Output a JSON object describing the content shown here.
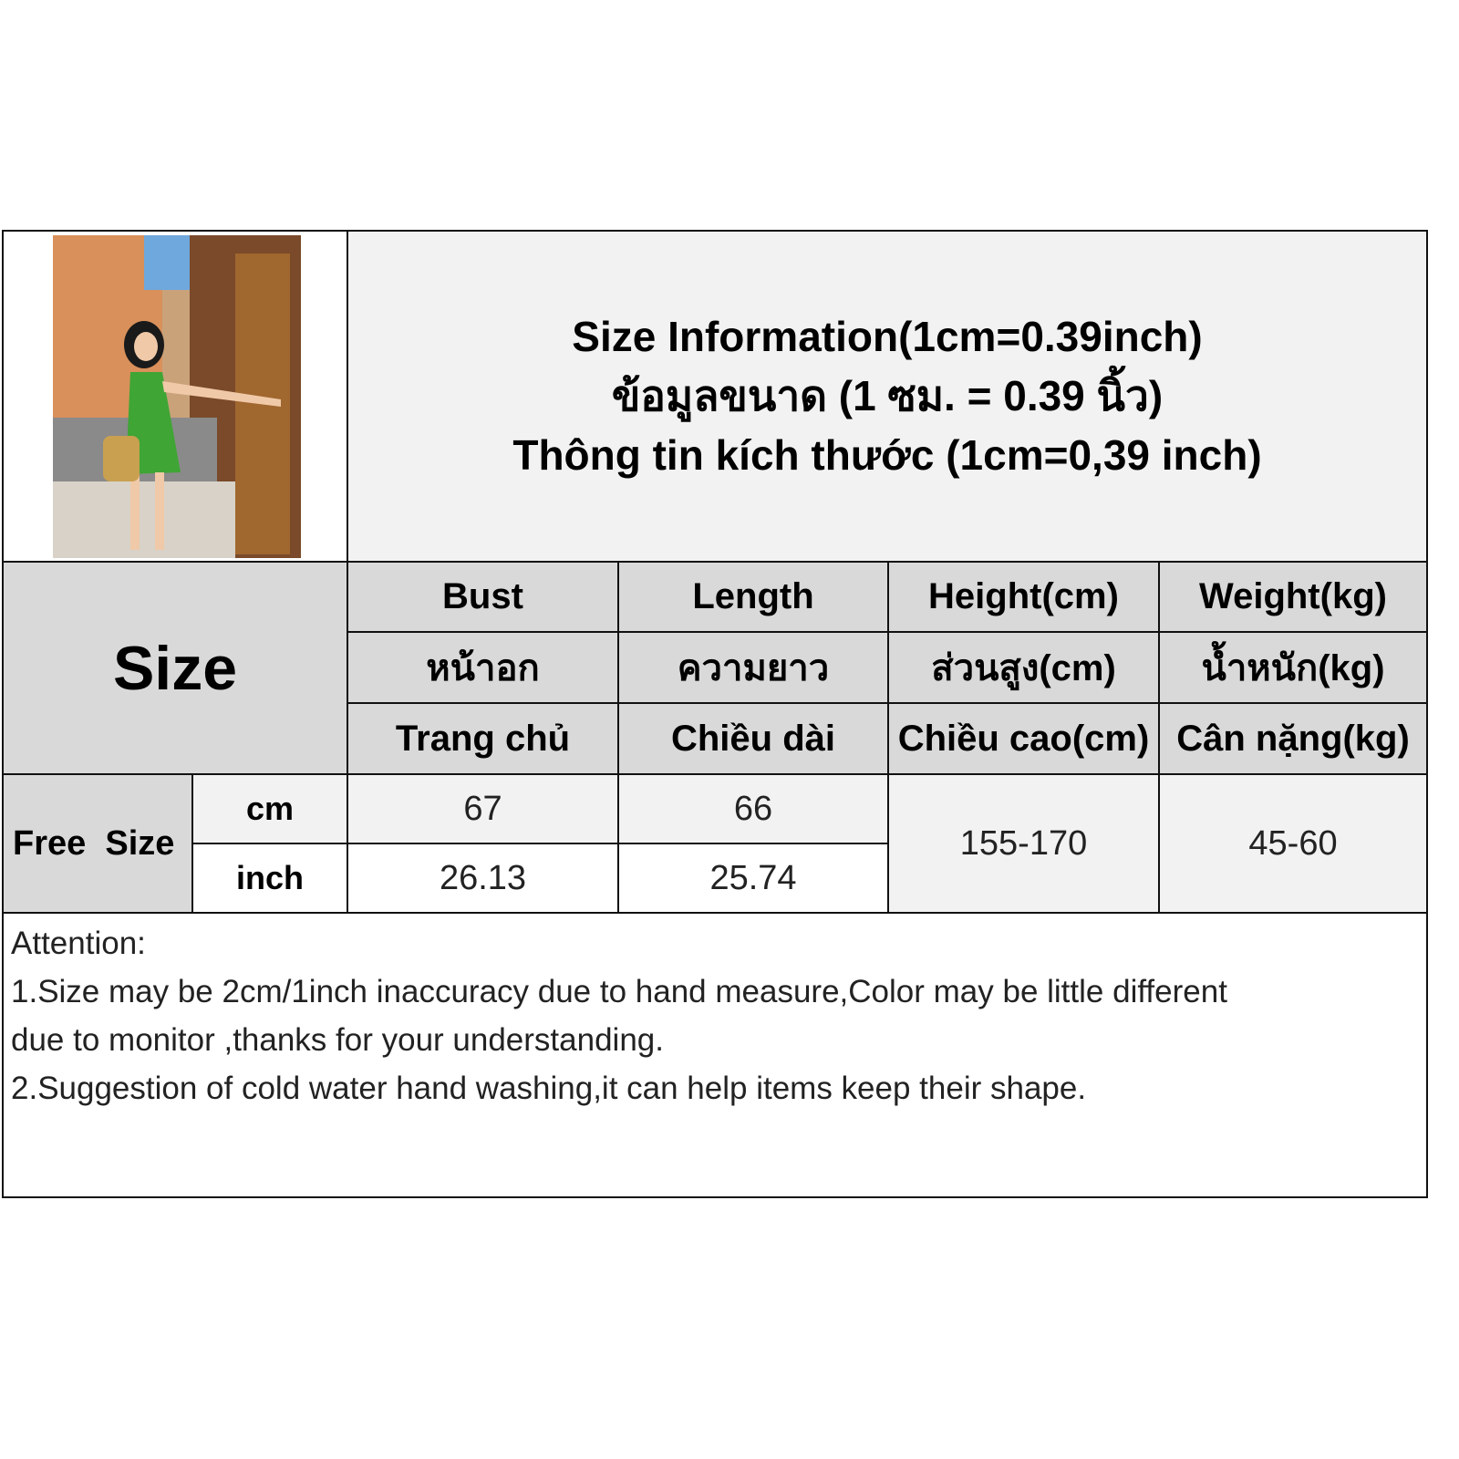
{
  "title": {
    "line_en": "Size Information(1cm=0.39inch)",
    "line_th": "ข้อมูลขนาด (1 ซม. = 0.39 นิ้ว)",
    "line_vi": "Thông tin kích thước (1cm=0,39 inch)"
  },
  "photo": {
    "alt_icon": "model-photo-green-dress"
  },
  "table": {
    "size_label": "Size",
    "columns": [
      {
        "en": "Bust",
        "th": "หน้าอก",
        "vi": "Trang chủ"
      },
      {
        "en": "Length",
        "th": "ความยาว",
        "vi": "Chiều dài"
      },
      {
        "en": "Height(cm)",
        "th": "ส่วนสูง(cm)",
        "vi": "Chiều cao(cm)"
      },
      {
        "en": "Weight(kg)",
        "th": "น้ำหนัก(kg)",
        "vi": "Cân nặng(kg)"
      }
    ],
    "row_label": "Free  Size",
    "units": [
      "cm",
      "inch"
    ],
    "cm_values": [
      "67",
      "66"
    ],
    "inch_values": [
      "26.13",
      "25.74"
    ],
    "height_value": "155-170",
    "weight_value": "45-60"
  },
  "attention": {
    "heading": "Attention:",
    "line1": "1.Size may be 2cm/1inch inaccuracy due to hand measure,Color may be little different",
    "line2": "due to monitor ,thanks for your understanding.",
    "line3": "2.Suggestion of cold water hand washing,it can help items keep their shape."
  },
  "colors": {
    "header_gray": "#d9d9d9",
    "light_gray": "#f2f2f2",
    "dress_green": "#3fa535"
  }
}
